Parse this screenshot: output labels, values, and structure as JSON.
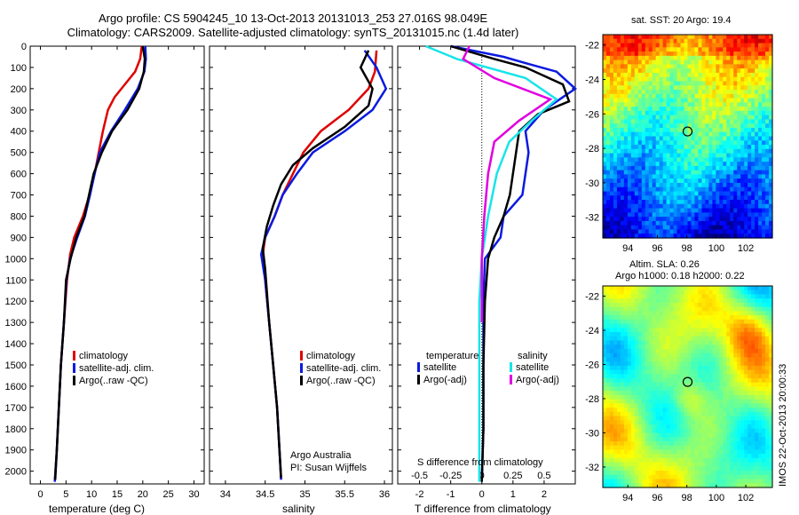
{
  "title": {
    "line1": "Argo profile: CS 5904245_10 13-Oct-2013 20131013_253 27.016S 98.049E",
    "line2": "Climatology: CARS2009. Satellite-adjusted climatology: synTS_20131015.nc (1.4d later)"
  },
  "side_label": "IMOS 22-Oct-2013 20:00:33",
  "colors": {
    "climatology": "#e00000",
    "satellite": "#0a1ae0",
    "argo": "#000000",
    "sal_satellite": "#18e4e8",
    "sal_argo": "#e000e0"
  },
  "depth_axis": {
    "ticks": [
      "0",
      "100",
      "200",
      "300",
      "400",
      "500",
      "600",
      "700",
      "800",
      "900",
      "1000",
      "1100",
      "1200",
      "1300",
      "1400",
      "1500",
      "1600",
      "1700",
      "1800",
      "1900",
      "2000"
    ],
    "range": [
      0,
      2060
    ]
  },
  "temperature_panel": {
    "xlabel": "temperature (deg C)",
    "xticks": [
      "0",
      "5",
      "10",
      "15",
      "20",
      "25",
      "30"
    ],
    "legend": [
      "climatology",
      "satellite-adj. clim.",
      "Argo(..raw -QC)"
    ]
  },
  "salinity_panel": {
    "xlabel": "salinity",
    "xticks": [
      "34",
      "34.5",
      "35",
      "35.5",
      "36"
    ],
    "legend": [
      "climatology",
      "satellite-adj. clim.",
      "Argo(..raw -QC)"
    ],
    "credit1": "Argo Australia",
    "credit2": "PI: Susan Wijffels"
  },
  "difference_panel": {
    "xlabel": "T difference from climatology",
    "xticks": [
      "-2",
      "-1",
      "0",
      "1",
      "2"
    ],
    "top_label": "S difference from climatology",
    "top_ticks": [
      "-0.5",
      "-0.25",
      "0",
      "0.25",
      "0.5"
    ],
    "legend_temp_title": "temperature",
    "legend_sal_title": "salinity",
    "legend_temp": [
      "satellite",
      "Argo(-adj)"
    ],
    "legend_sal": [
      "satellite",
      "Argo(-adj)"
    ]
  },
  "sst_map": {
    "title": "sat. SST: 20 Argo: 19.4",
    "xticks": [
      "94",
      "96",
      "98",
      "100",
      "102"
    ],
    "yticks": [
      "-22",
      "-24",
      "-26",
      "-28",
      "-30",
      "-32"
    ],
    "marker": "98.049E 27.016S"
  },
  "sla_map": {
    "title1": "Altim. SLA: 0.26",
    "title2": "Argo h1000: 0.18 h2000: 0.22",
    "xticks": [
      "94",
      "96",
      "98",
      "100",
      "102"
    ],
    "yticks": [
      "-22",
      "-24",
      "-26",
      "-28",
      "-30",
      "-32"
    ],
    "marker": "98.049E 27.016S"
  },
  "chart_data": [
    {
      "type": "line",
      "title": "",
      "xlabel": "temperature (deg C)",
      "ylabel": "",
      "xlim": [
        -2,
        32
      ],
      "ylim": [
        2060,
        0
      ],
      "series": [
        {
          "name": "climatology",
          "color": "#e00000",
          "points": [
            [
              19.8,
              0
            ],
            [
              19.5,
              60
            ],
            [
              18.5,
              120
            ],
            [
              16.5,
              180
            ],
            [
              14.5,
              240
            ],
            [
              13.2,
              300
            ],
            [
              12.2,
              400
            ],
            [
              11.4,
              500
            ],
            [
              10.6,
              600
            ],
            [
              9.6,
              700
            ],
            [
              8.3,
              800
            ],
            [
              6.6,
              900
            ],
            [
              5.8,
              980
            ],
            [
              5.2,
              1100
            ],
            [
              4.6,
              1300
            ],
            [
              4.0,
              1500
            ],
            [
              3.6,
              1700
            ],
            [
              3.2,
              1900
            ],
            [
              2.8,
              2050
            ]
          ]
        },
        {
          "name": "satellite-adj. clim.",
          "color": "#0a1ae0",
          "points": [
            [
              20.5,
              0
            ],
            [
              20.6,
              60
            ],
            [
              20.3,
              120
            ],
            [
              19.0,
              200
            ],
            [
              16.5,
              300
            ],
            [
              13.8,
              400
            ],
            [
              11.6,
              500
            ],
            [
              10.6,
              600
            ],
            [
              9.7,
              700
            ],
            [
              8.7,
              800
            ],
            [
              7.2,
              900
            ],
            [
              5.8,
              1000
            ],
            [
              5.1,
              1100
            ],
            [
              4.6,
              1300
            ],
            [
              4.0,
              1500
            ],
            [
              3.6,
              1700
            ],
            [
              3.2,
              1900
            ],
            [
              2.8,
              2050
            ]
          ]
        },
        {
          "name": "Argo(..raw -QC)",
          "color": "#000000",
          "points": [
            [
              20.0,
              0
            ],
            [
              20.4,
              60
            ],
            [
              20.2,
              120
            ],
            [
              19.3,
              200
            ],
            [
              17.0,
              300
            ],
            [
              14.0,
              400
            ],
            [
              12.0,
              500
            ],
            [
              10.4,
              600
            ],
            [
              9.5,
              700
            ],
            [
              8.6,
              800
            ],
            [
              7.0,
              900
            ],
            [
              5.9,
              1000
            ],
            [
              5.0,
              1100
            ],
            [
              4.6,
              1300
            ],
            [
              4.0,
              1500
            ],
            [
              3.6,
              1700
            ],
            [
              3.2,
              1900
            ],
            [
              2.9,
              2040
            ]
          ]
        }
      ]
    },
    {
      "type": "line",
      "title": "",
      "xlabel": "salinity",
      "ylabel": "",
      "xlim": [
        33.8,
        36.1
      ],
      "ylim": [
        2060,
        0
      ],
      "series": [
        {
          "name": "climatology",
          "color": "#e00000",
          "points": [
            [
              35.9,
              20
            ],
            [
              35.88,
              120
            ],
            [
              35.8,
              200
            ],
            [
              35.55,
              300
            ],
            [
              35.2,
              400
            ],
            [
              34.98,
              500
            ],
            [
              34.85,
              600
            ],
            [
              34.72,
              700
            ],
            [
              34.62,
              800
            ],
            [
              34.5,
              900
            ],
            [
              34.47,
              980
            ],
            [
              34.5,
              1100
            ],
            [
              34.55,
              1300
            ],
            [
              34.6,
              1500
            ],
            [
              34.65,
              1700
            ],
            [
              34.68,
              1900
            ],
            [
              34.7,
              2040
            ]
          ]
        },
        {
          "name": "satellite-adj. clim.",
          "color": "#0a1ae0",
          "points": [
            [
              35.75,
              20
            ],
            [
              35.9,
              100
            ],
            [
              36.02,
              200
            ],
            [
              35.85,
              300
            ],
            [
              35.5,
              400
            ],
            [
              35.1,
              500
            ],
            [
              34.9,
              600
            ],
            [
              34.72,
              700
            ],
            [
              34.62,
              800
            ],
            [
              34.5,
              900
            ],
            [
              34.45,
              980
            ],
            [
              34.5,
              1100
            ],
            [
              34.55,
              1300
            ],
            [
              34.6,
              1500
            ],
            [
              34.65,
              1700
            ],
            [
              34.68,
              1900
            ],
            [
              34.7,
              2040
            ]
          ]
        },
        {
          "name": "Argo(..raw -QC)",
          "color": "#000000",
          "points": [
            [
              35.8,
              20
            ],
            [
              35.7,
              100
            ],
            [
              35.85,
              200
            ],
            [
              35.8,
              280
            ],
            [
              35.5,
              380
            ],
            [
              35.1,
              480
            ],
            [
              34.85,
              560
            ],
            [
              34.7,
              650
            ],
            [
              34.6,
              750
            ],
            [
              34.52,
              850
            ],
            [
              34.47,
              950
            ],
            [
              34.5,
              1050
            ],
            [
              34.55,
              1300
            ],
            [
              34.6,
              1500
            ],
            [
              34.65,
              1700
            ],
            [
              34.68,
              1900
            ],
            [
              34.7,
              2030
            ]
          ]
        }
      ]
    },
    {
      "type": "line",
      "title": "",
      "xlabel": "T difference from climatology",
      "ylabel": "",
      "xlim": [
        -2.7,
        3.0
      ],
      "ylim": [
        2060,
        0
      ],
      "series": [
        {
          "name": "temperature satellite",
          "color": "#0a1ae0",
          "points": [
            [
              -1.0,
              0
            ],
            [
              0.7,
              50
            ],
            [
              1.4,
              80
            ],
            [
              2.4,
              120
            ],
            [
              3.0,
              200
            ],
            [
              2.0,
              300
            ],
            [
              1.4,
              400
            ],
            [
              1.5,
              500
            ],
            [
              1.4,
              600
            ],
            [
              1.3,
              700
            ],
            [
              0.7,
              800
            ],
            [
              0.6,
              900
            ],
            [
              0.1,
              1000
            ],
            [
              0.05,
              1200
            ],
            [
              0.05,
              1500
            ],
            [
              0.05,
              1800
            ],
            [
              0.0,
              2050
            ]
          ]
        },
        {
          "name": "temperature Argo(-adj)",
          "color": "#000000",
          "points": [
            [
              -1.0,
              0
            ],
            [
              0.4,
              60
            ],
            [
              1.4,
              100
            ],
            [
              2.6,
              180
            ],
            [
              2.8,
              260
            ],
            [
              1.8,
              320
            ],
            [
              1.2,
              400
            ],
            [
              1.1,
              500
            ],
            [
              1.0,
              600
            ],
            [
              0.9,
              700
            ],
            [
              0.7,
              800
            ],
            [
              0.4,
              900
            ],
            [
              0.2,
              1000
            ],
            [
              0.1,
              1200
            ],
            [
              0.05,
              1500
            ],
            [
              0.05,
              1800
            ],
            [
              0.0,
              2050
            ]
          ]
        },
        {
          "name": "salinity satellite",
          "color": "#18e4e8",
          "points": [
            [
              -0.45,
              0
            ],
            [
              -0.2,
              60
            ],
            [
              0.35,
              150
            ],
            [
              0.6,
              250
            ],
            [
              0.4,
              350
            ],
            [
              0.22,
              450
            ],
            [
              0.12,
              600
            ],
            [
              0.05,
              800
            ],
            [
              0.0,
              1000
            ],
            [
              -0.02,
              1200
            ],
            [
              -0.02,
              1500
            ],
            [
              -0.02,
              1800
            ],
            [
              -0.02,
              2050
            ]
          ]
        },
        {
          "name": "salinity Argo(-adj)",
          "color": "#e000e0",
          "points": [
            [
              -0.1,
              0
            ],
            [
              -0.15,
              60
            ],
            [
              0.1,
              150
            ],
            [
              0.55,
              250
            ],
            [
              0.3,
              350
            ],
            [
              0.1,
              450
            ],
            [
              0.05,
              600
            ],
            [
              0.02,
              800
            ],
            [
              0.0,
              1000
            ],
            [
              0.0,
              1200
            ],
            [
              0.0,
              1300
            ]
          ]
        }
      ]
    }
  ]
}
